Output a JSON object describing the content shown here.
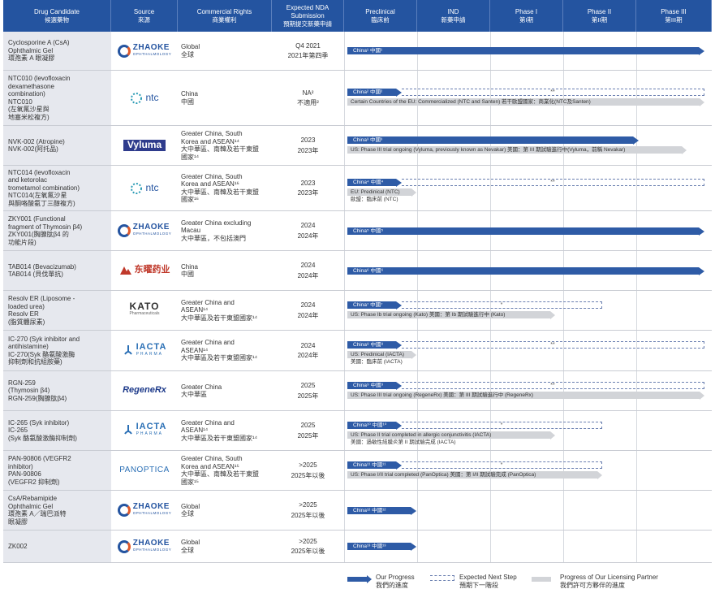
{
  "headers": [
    {
      "en": "Drug Candidate",
      "zh": "候選藥物"
    },
    {
      "en": "Source",
      "zh": "來源"
    },
    {
      "en": "Commercial Rights",
      "zh": "商業權利"
    },
    {
      "en": "Expected NDA Submission",
      "zh": "預期提交新藥申請"
    },
    {
      "en": "Preclinical",
      "zh": "臨床前"
    },
    {
      "en": "IND",
      "zh": "新藥申請"
    },
    {
      "en": "Phase I",
      "zh": "第I期"
    },
    {
      "en": "Phase II",
      "zh": "第II期"
    },
    {
      "en": "Phase III",
      "zh": "第III期"
    }
  ],
  "rows": [
    {
      "drug": [
        "Cyclosporine A (CsA)",
        "Ophthalmic Gel",
        "環孢素 A 眼凝膠"
      ],
      "source": "zhaoke",
      "rights": [
        "Global",
        "全球"
      ],
      "nda": [
        "Q4 2021",
        "2021年第四季"
      ],
      "bars": [
        {
          "label": "China¹ 中國¹",
          "end": 0.98
        }
      ],
      "dash": null,
      "gray": null,
      "graytext": null
    },
    {
      "drug": [
        "NTC010 (levofloxacin",
        "dexamethasone",
        "combination)",
        "NTC010",
        "(左氧氟沙星與",
        "地塞米松複方)"
      ],
      "source": "ntc",
      "rights": [
        "China",
        "中國"
      ],
      "nda": [
        "NA²",
        "不適用²"
      ],
      "bars": [
        {
          "label": "China² 中國²",
          "end": 0.15
        }
      ],
      "dash": {
        "end": 0.98,
        "mark": "**"
      },
      "gray": {
        "label": "Certain Countries of the EU: Commercialized (NTC and Santen)  若干歐盟國家：商業化(NTC及Santen)",
        "end": 0.98
      },
      "graytext": null
    },
    {
      "drug": [
        "NVK-002 (Atropine)",
        "NVK-002(阿托品)"
      ],
      "source": "vyluma",
      "rights": [
        "Greater China, South",
        "Korea and ASEAN¹⁴",
        "大中華區、南韓及若干東盟",
        "國家¹⁴"
      ],
      "nda": [
        "2023",
        "2023年"
      ],
      "bars": [
        {
          "label": "China³ 中國³",
          "end": 0.8
        }
      ],
      "dash": null,
      "gray": {
        "label": "US: Phase III trial ongoing (Vyluma, previously known as Nevakar)  美國：第 III 期試驗進行中(Vyluma，前稱 Nevakar)",
        "end": 0.93
      },
      "graytext": null
    },
    {
      "drug": [
        "NTC014 (levofloxacin",
        "and ketorolac",
        "trometamol combination)",
        "NTC014(左氧氟沙星",
        "與酮咯酸氨丁三醇複方)"
      ],
      "source": "ntc",
      "rights": [
        "Greater China, South",
        "Korea and ASEAN¹⁶",
        "大中華區、南韓及若干東盟",
        "國家¹⁶"
      ],
      "nda": [
        "2023",
        "2023年"
      ],
      "bars": [
        {
          "label": "China⁴ 中國⁴",
          "end": 0.15
        }
      ],
      "dash": {
        "end": 0.98,
        "mark": "**"
      },
      "gray": {
        "label": "EU: Predinical (NTC)",
        "end": 0.19
      },
      "graytext": "歐盟：臨床前 (NTC)"
    },
    {
      "drug": [
        "ZKY001 (Functional",
        "fragment of Thymosin β4)",
        "ZKY001(胸腺肽β4 的",
        "功能片段)"
      ],
      "source": "zhaoke",
      "rights": [
        "Greater China excluding",
        "Macau",
        "大中華區，不包括澳門"
      ],
      "nda": [
        "2024",
        "2024年"
      ],
      "bars": [
        {
          "label": "China⁵ 中國⁵",
          "end": 0.98
        }
      ],
      "dash": null,
      "gray": null,
      "graytext": null
    },
    {
      "drug": [
        "TAB014 (Bevacizumab)",
        "TAB014 (貝伐單抗)"
      ],
      "source": "dongyao",
      "rights": [
        "China",
        "中國"
      ],
      "nda": [
        "2024",
        "2024年"
      ],
      "bars": [
        {
          "label": "China⁶ 中國⁶",
          "end": 0.98
        }
      ],
      "dash": null,
      "gray": null,
      "graytext": null
    },
    {
      "drug": [
        "Resolv ER (Liposome -",
        "loaded urea)",
        "Resolv ER",
        "(脂質體尿素)"
      ],
      "source": "kato",
      "rights": [
        "Greater China and",
        "ASEAN¹⁴",
        "大中華區及若干東盟國家¹⁴"
      ],
      "nda": [
        "2024",
        "2024年"
      ],
      "bars": [
        {
          "label": "China⁷ 中國⁷",
          "end": 0.15
        }
      ],
      "dash": {
        "end": 0.7,
        "mark": "*"
      },
      "gray": {
        "label": "US: Phase Ib trial ongoing (Kato)  美國：第 Ib 期試驗進行中 (Kato)",
        "end": 0.57
      },
      "graytext": null
    },
    {
      "drug": [
        "IC-270 (Syk inhibitor and",
        "antihistamine)",
        "IC-270(Syk 酪氨酸激酶",
        "抑制劑和抗組胺藥)"
      ],
      "source": "iacta",
      "rights": [
        "Greater China and",
        "ASEAN¹⁴",
        "大中華區及若干東盟國家¹⁴"
      ],
      "nda": [
        "2024",
        "2024年"
      ],
      "bars": [
        {
          "label": "China⁸ 中國⁸",
          "end": 0.15
        }
      ],
      "dash": {
        "end": 0.98,
        "mark": "**"
      },
      "gray": {
        "label": "US: Predinical (IACTA)",
        "end": 0.19
      },
      "graytext": "美國：臨床前 (IACTA)"
    },
    {
      "drug": [
        "RGN-259",
        "(Thymosin β4)",
        "RGN-259(胸腺肽β4)"
      ],
      "source": "regenerx",
      "rights": [
        "Greater China",
        "大中華區"
      ],
      "nda": [
        "2025",
        "2025年"
      ],
      "bars": [
        {
          "label": "China⁹ 中國⁹",
          "end": 0.15
        }
      ],
      "dash": {
        "end": 0.98,
        "mark": "**"
      },
      "gray": {
        "label": "US: Phase III trial ongoing (RegeneRx)  美國：第 III 期試驗進行中 (RegeneRx)",
        "end": 0.98
      },
      "graytext": null
    },
    {
      "drug": [
        "IC-265 (Syk inhibitor)",
        "IC-265",
        "(Syk 酪氨酸激酶抑制劑)"
      ],
      "source": "iacta",
      "rights": [
        "Greater China and",
        "ASEAN¹⁴",
        "大中華區及若干東盟國家¹⁴"
      ],
      "nda": [
        "2025",
        "2025年"
      ],
      "bars": [
        {
          "label": "China¹⁰ 中國¹⁰",
          "end": 0.15
        }
      ],
      "dash": {
        "end": 0.7,
        "mark": "*"
      },
      "gray": {
        "label": "US: Phase II trial completed in allergic conjunctivitis (IACTA)",
        "end": 0.57
      },
      "graytext": "美國：過敏性結膜炎第 II 期試驗完成 (IACTA)"
    },
    {
      "drug": [
        "PAN-90806 (VEGFR2",
        "inhibitor)",
        "PAN-90806",
        "(VEGFR2 抑制劑)"
      ],
      "source": "panoptica",
      "rights": [
        "Greater China, South",
        "Korea and ASEAN¹⁵",
        "大中華區、南韓及若干東盟",
        "國家¹⁵"
      ],
      "nda": [
        ">2025",
        "2025年以後"
      ],
      "bars": [
        {
          "label": "China¹¹ 中國¹¹",
          "end": 0.15
        }
      ],
      "dash": {
        "end": 0.7,
        "mark": "*"
      },
      "gray": {
        "label": "US: Phase I/II trial completed (PanOptica)  美國：第 I/II 期試驗完成 (PanOptica)",
        "end": 0.7
      },
      "graytext": null
    },
    {
      "drug": [
        "CsA/Rebamipide",
        "Ophthalmic Gel",
        "環孢素 A／瑞巴派特",
        "眼凝膠"
      ],
      "source": "zhaoke",
      "rights": [
        "Global",
        "全球"
      ],
      "nda": [
        ">2025",
        "2025年以後"
      ],
      "bars": [
        {
          "label": "China¹² 中國¹²",
          "end": 0.19
        }
      ],
      "dash": null,
      "gray": null,
      "graytext": null
    },
    {
      "drug": [
        "ZK002"
      ],
      "source": "zhaoke",
      "rights": [
        "Global",
        "全球"
      ],
      "nda": [
        ">2025",
        "2025年以後"
      ],
      "bars": [
        {
          "label": "China¹³ 中國¹³",
          "end": 0.19
        }
      ],
      "dash": null,
      "gray": null,
      "graytext": null
    }
  ],
  "logos": {
    "zhaoke": {
      "text": "ZHAOKE",
      "sub": "OPHTHALMOLOGY",
      "color": "#2454a0"
    },
    "ntc": {
      "text": "ntc",
      "color": "#2454a0"
    },
    "vyluma": {
      "text": "Vyluma",
      "color": "#2e3b8c"
    },
    "dongyao": {
      "text": "东曜药业",
      "color": "#c0392b"
    },
    "kato": {
      "text": "KATO",
      "sub": "Pharmaceuticals",
      "color": "#333333"
    },
    "iacta": {
      "text": "IACTA",
      "sub": "PHARMA",
      "color": "#2a6fb5"
    },
    "regenerx": {
      "text": "RegeneRx",
      "color": "#1d3a8a"
    },
    "panoptica": {
      "text": "PANOPTICA",
      "color": "#2a6fb5"
    }
  },
  "legend": [
    {
      "en": "Our Progress",
      "zh": "我們的進度"
    },
    {
      "en": "Expected Next Step",
      "zh": "預期下一階段"
    },
    {
      "en": "Progress of Our Licensing Partner",
      "zh": "我們許可方夥伴的進度"
    }
  ],
  "colors": {
    "header": "#2454a0",
    "bar": "#2e5ba6",
    "partner": "#d2d4d8",
    "drug_bg": "#e6e8ee"
  }
}
